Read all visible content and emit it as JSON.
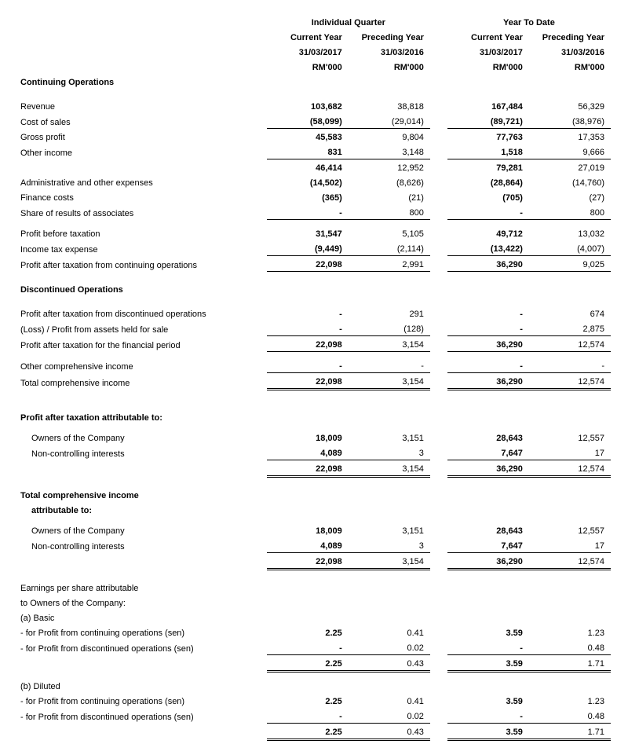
{
  "headers": {
    "group1": "Individual Quarter",
    "group2": "Year To Date",
    "col1_a": "Current Year",
    "col2_a": "Preceding Year",
    "col3_a": "Current Year",
    "col4_a": "Preceding Year",
    "col1_b": "31/03/2017",
    "col2_b": "31/03/2016",
    "col3_b": "31/03/2017",
    "col4_b": "31/03/2016",
    "unit": "RM'000"
  },
  "sections": {
    "continuing": "Continuing Operations",
    "discontinued": "Discontinued Operations",
    "pat_attrib": "Profit after taxation attributable to:",
    "tci_attrib_a": "Total comprehensive income",
    "tci_attrib_b": "attributable to:",
    "eps_a": "Earnings per share attributable",
    "eps_b": "to Owners of the Company:",
    "eps_basic": "(a) Basic",
    "eps_diluted": "(b) Diluted"
  },
  "labels": {
    "revenue": "Revenue",
    "cost_sales": "Cost of sales",
    "gross_profit": "Gross profit",
    "other_income": "Other income",
    "admin_exp": "Administrative and other expenses",
    "finance_costs": "Finance costs",
    "share_assoc": "Share of results of associates",
    "pbt": "Profit before taxation",
    "tax_exp": "Income tax expense",
    "pat_cont": "Profit after taxation from continuing operations",
    "pat_disc": "Profit after taxation from discontinued operations",
    "loss_assets": "(Loss) / Profit from assets held for sale",
    "pat_period": "Profit after taxation for the financial period",
    "oci": "Other comprehensive income",
    "tci": "Total comprehensive income",
    "owners": "Owners of the Company",
    "nci": "Non-controlling interests",
    "eps_cont": "- for Profit from continuing operations (sen)",
    "eps_disc": "- for Profit from discontinued operations (sen)"
  },
  "v": {
    "revenue": [
      "103,682",
      "38,818",
      "167,484",
      "56,329"
    ],
    "cost_sales": [
      "(58,099)",
      "(29,014)",
      "(89,721)",
      "(38,976)"
    ],
    "gross_profit": [
      "45,583",
      "9,804",
      "77,763",
      "17,353"
    ],
    "other_income": [
      "831",
      "3,148",
      "1,518",
      "9,666"
    ],
    "sub1": [
      "46,414",
      "12,952",
      "79,281",
      "27,019"
    ],
    "admin_exp": [
      "(14,502)",
      "(8,626)",
      "(28,864)",
      "(14,760)"
    ],
    "finance_costs": [
      "(365)",
      "(21)",
      "(705)",
      "(27)"
    ],
    "share_assoc": [
      "-",
      "800",
      "-",
      "800"
    ],
    "pbt": [
      "31,547",
      "5,105",
      "49,712",
      "13,032"
    ],
    "tax_exp": [
      "(9,449)",
      "(2,114)",
      "(13,422)",
      "(4,007)"
    ],
    "pat_cont": [
      "22,098",
      "2,991",
      "36,290",
      "9,025"
    ],
    "pat_disc": [
      "-",
      "291",
      "-",
      "674"
    ],
    "loss_assets": [
      "-",
      "(128)",
      "-",
      "2,875"
    ],
    "pat_period": [
      "22,098",
      "3,154",
      "36,290",
      "12,574"
    ],
    "oci": [
      "-",
      "-",
      "-",
      "-"
    ],
    "tci": [
      "22,098",
      "3,154",
      "36,290",
      "12,574"
    ],
    "owners1": [
      "18,009",
      "3,151",
      "28,643",
      "12,557"
    ],
    "nci1": [
      "4,089",
      "3",
      "7,647",
      "17"
    ],
    "tot1": [
      "22,098",
      "3,154",
      "36,290",
      "12,574"
    ],
    "owners2": [
      "18,009",
      "3,151",
      "28,643",
      "12,557"
    ],
    "nci2": [
      "4,089",
      "3",
      "7,647",
      "17"
    ],
    "tot2": [
      "22,098",
      "3,154",
      "36,290",
      "12,574"
    ],
    "eps_b_cont": [
      "2.25",
      "0.41",
      "3.59",
      "1.23"
    ],
    "eps_b_disc": [
      "-",
      "0.02",
      "-",
      "0.48"
    ],
    "eps_b_tot": [
      "2.25",
      "0.43",
      "3.59",
      "1.71"
    ],
    "eps_d_cont": [
      "2.25",
      "0.41",
      "3.59",
      "1.23"
    ],
    "eps_d_disc": [
      "-",
      "0.02",
      "-",
      "0.48"
    ],
    "eps_d_tot": [
      "2.25",
      "0.43",
      "3.59",
      "1.71"
    ]
  }
}
